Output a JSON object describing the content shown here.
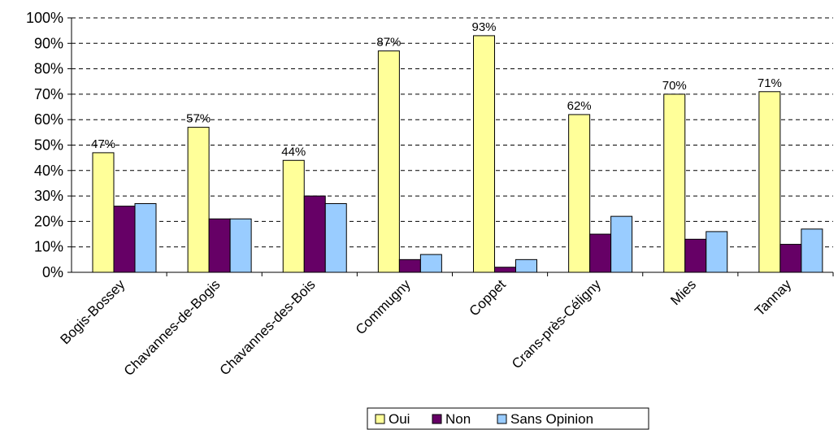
{
  "chart_data": {
    "type": "bar",
    "categories": [
      "Bogis-Bossey",
      "Chavannes-de-Bogis",
      "Chavannes-des-Bois",
      "Commugny",
      "Coppet",
      "Crans-près-Céligny",
      "Mies",
      "Tannay"
    ],
    "series": [
      {
        "name": "Oui",
        "color": "#ffff99",
        "values": [
          47,
          57,
          44,
          87,
          93,
          62,
          70,
          71
        ]
      },
      {
        "name": "Non",
        "color": "#660066",
        "values": [
          26,
          21,
          30,
          5,
          2,
          15,
          13,
          11
        ]
      },
      {
        "name": "Sans Opinion",
        "color": "#99ccff",
        "values": [
          27,
          21,
          27,
          7,
          5,
          22,
          16,
          17
        ]
      }
    ],
    "data_labels": [
      "47%",
      "57%",
      "44%",
      "87%",
      "93%",
      "62%",
      "70%",
      "71%"
    ],
    "ylim": [
      0,
      100
    ],
    "yticks": [
      "0%",
      "10%",
      "20%",
      "30%",
      "40%",
      "50%",
      "60%",
      "70%",
      "80%",
      "90%",
      "100%"
    ],
    "grid": "dashed horizontal",
    "legend_position": "bottom-right",
    "title": "",
    "xlabel": "",
    "ylabel": ""
  }
}
